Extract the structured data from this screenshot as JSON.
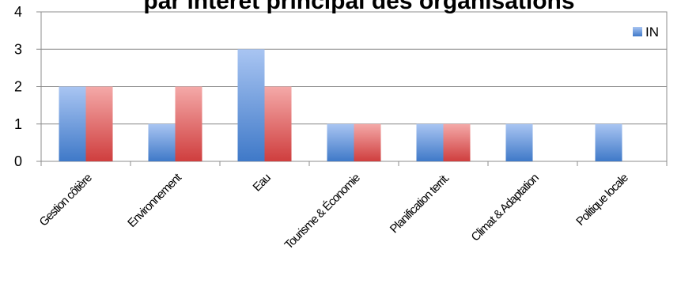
{
  "chart_data": {
    "type": "bar",
    "title": "par intérêt principal des organisations",
    "categories": [
      "Gestion côtière",
      "Environnement",
      "Eau",
      "Tourisme & Économie",
      "Planification territ.",
      "Climat & Adaptation",
      "Politique locale"
    ],
    "series": [
      {
        "name": "IN",
        "values": [
          2,
          1,
          3,
          1,
          1,
          1,
          1
        ],
        "color": "#4f81bd"
      },
      {
        "values": [
          2,
          2,
          2,
          1,
          1,
          0,
          0
        ],
        "color": "#c0504d"
      }
    ],
    "ylim": [
      0,
      4
    ],
    "yticks": [
      0,
      1,
      2,
      3,
      4
    ],
    "grid": true,
    "legend": "top-right"
  }
}
